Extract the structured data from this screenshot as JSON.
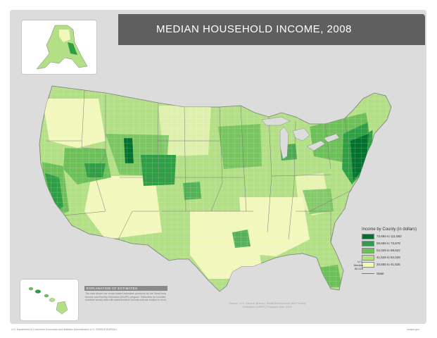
{
  "title": "MEDIAN HOUSEHOLD INCOME, 2008",
  "colors": {
    "panel": "#dcdcdc",
    "title_bar": "#5f5f5f",
    "class1": "#04722f",
    "class2": "#2f9e44",
    "class3": "#6dbf5a",
    "class4": "#b3df86",
    "class5": "#f2f7bc",
    "state_line": "#7a7a7a"
  },
  "legend": {
    "title": "Income by County (in dollars)",
    "items": [
      {
        "label": "73,694 to 111,582",
        "color": "#04722f"
      },
      {
        "label": "58,655 to 73,678",
        "color": "#2f9e44"
      },
      {
        "label": "52,029 to 58,622",
        "color": "#6dbf5a"
      },
      {
        "label": "41,529 to 52,028",
        "color": "#b3df86"
      },
      {
        "label": "20,655 to 41,525",
        "color": "#f2f7bc"
      }
    ],
    "us_median": "U.S. Median 52,029",
    "state_label": "State"
  },
  "note": {
    "heading": "EXPLANATION OF ESTIMATES",
    "text": "The data shown are model-based estimates produced by the Small Area Income and Poverty Estimates (SAIPE) program. Estimates for counties combine survey data with administrative records and are subject to error."
  },
  "source": "Source: U.S. Census Bureau, Small Area Income and Poverty Estimates (SAIPE) Program, Dec. 2009",
  "footer": {
    "left": "U.S. Department of Commerce Economics and Statistics Administration U.S. CENSUS BUREAU",
    "right": "census.gov"
  }
}
